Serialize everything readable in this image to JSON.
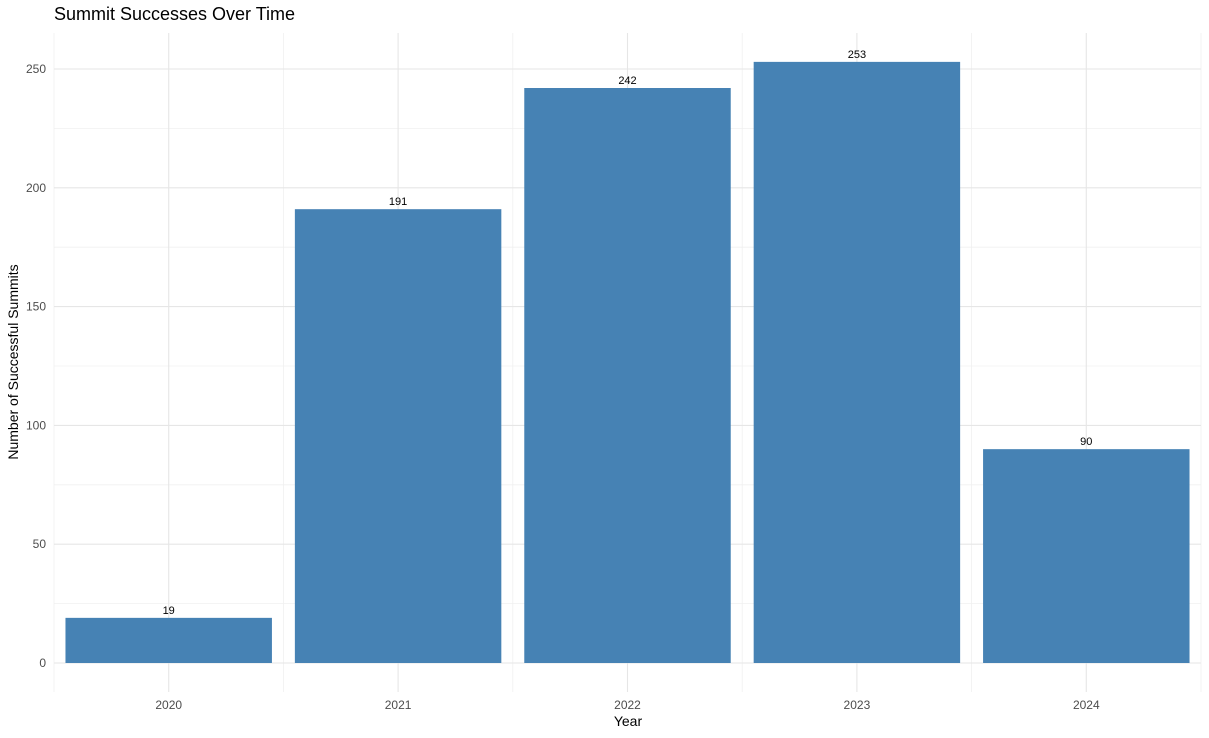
{
  "chart_data": {
    "type": "bar",
    "title": "Summit Successes Over Time",
    "xlabel": "Year",
    "ylabel": "Number of Successful Summits",
    "categories": [
      "2020",
      "2021",
      "2022",
      "2023",
      "2024"
    ],
    "values": [
      19,
      191,
      242,
      253,
      90
    ],
    "ylim": [
      0,
      265
    ],
    "yticks": [
      0,
      50,
      100,
      150,
      200,
      250
    ],
    "grid": true,
    "bar_color": "#4682B4",
    "data_labels": true
  }
}
